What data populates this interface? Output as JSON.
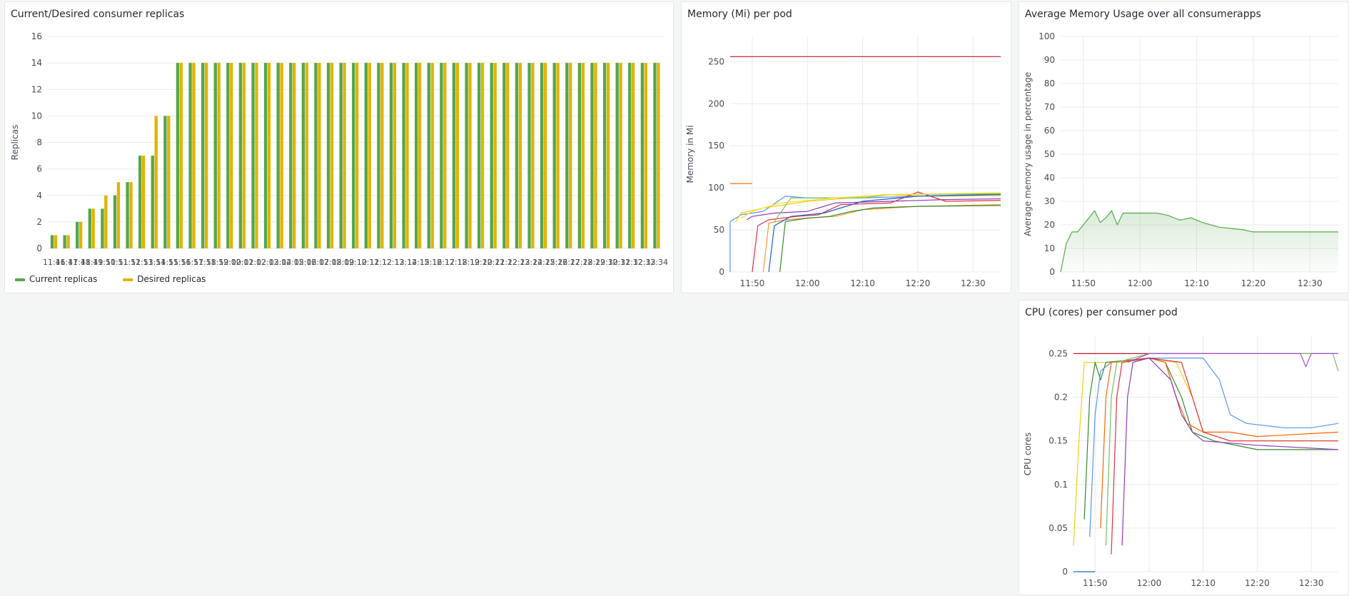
{
  "panels": {
    "replicas": {
      "title": "Current/Desired consumer replicas"
    },
    "memory": {
      "title": "Memory (Mi) per pod"
    },
    "avgmem": {
      "title": "Average Memory Usage over all consumerapps"
    },
    "cpu": {
      "title": "CPU (cores) per consumer pod"
    }
  },
  "colors": {
    "current": "#56a64b",
    "desired": "#e0b400",
    "limit": "#c4162a",
    "grid": "#e9ebec",
    "text": "#464c54"
  },
  "chart_data": [
    {
      "type": "bar",
      "title": "Current/Desired consumer replicas",
      "ylabel": "Replicas",
      "ylim": [
        0,
        16
      ],
      "yticks": [
        0,
        2,
        4,
        6,
        8,
        10,
        12,
        14,
        16
      ],
      "categories": [
        "11:46",
        "11:47",
        "11:48",
        "11:49",
        "11:50",
        "11:51",
        "11:52",
        "11:53",
        "11:54",
        "11:55",
        "11:56",
        "11:57",
        "11:58",
        "11:59",
        "12:00",
        "12:01",
        "12:02",
        "12:03",
        "12:04",
        "12:05",
        "12:06",
        "12:07",
        "12:08",
        "12:09",
        "12:10",
        "12:11",
        "12:12",
        "12:13",
        "12:14",
        "12:15",
        "12:16",
        "12:17",
        "12:18",
        "12:19",
        "12:20",
        "12:21",
        "12:22",
        "12:23",
        "12:24",
        "12:25",
        "12:26",
        "12:27",
        "12:28",
        "12:29",
        "12:30",
        "12:31",
        "12:32",
        "12:33",
        "12:34"
      ],
      "series": [
        {
          "name": "Current replicas",
          "color": "#56a64b",
          "values": [
            1,
            1,
            2,
            3,
            3,
            4,
            5,
            7,
            7,
            10,
            14,
            14,
            14,
            14,
            14,
            14,
            14,
            14,
            14,
            14,
            14,
            14,
            14,
            14,
            14,
            14,
            14,
            14,
            14,
            14,
            14,
            14,
            14,
            14,
            14,
            14,
            14,
            14,
            14,
            14,
            14,
            14,
            14,
            14,
            14,
            14,
            14,
            14,
            14
          ]
        },
        {
          "name": "Desired replicas",
          "color": "#e0b400",
          "values": [
            1,
            1,
            2,
            3,
            4,
            5,
            5,
            7,
            10,
            10,
            14,
            14,
            14,
            14,
            14,
            14,
            14,
            14,
            14,
            14,
            14,
            14,
            14,
            14,
            14,
            14,
            14,
            14,
            14,
            14,
            14,
            14,
            14,
            14,
            14,
            14,
            14,
            14,
            14,
            14,
            14,
            14,
            14,
            14,
            14,
            14,
            14,
            14,
            14
          ]
        }
      ],
      "legend": "bottom-left"
    },
    {
      "type": "line",
      "title": "Memory (Mi) per pod",
      "ylabel": "Memory in Mi",
      "ylim": [
        0,
        280
      ],
      "yticks": [
        0,
        50,
        100,
        150,
        200,
        250
      ],
      "xlim": [
        "11:46",
        "12:35"
      ],
      "xticks": [
        "11:50",
        "12:00",
        "12:10",
        "12:20",
        "12:30"
      ],
      "series": [
        {
          "color": "#c4162a",
          "points": [
            [
              "11:46",
              256
            ],
            [
              "12:35",
              256
            ]
          ]
        },
        {
          "color": "#fa6400",
          "points": [
            [
              "11:46",
              105
            ],
            [
              "11:50",
              105
            ]
          ]
        },
        {
          "color": "#5794f2",
          "points": [
            [
              "11:46",
              0
            ],
            [
              "11:46",
              60
            ],
            [
              "11:48",
              68
            ],
            [
              "11:52",
              72
            ],
            [
              "11:56",
              90
            ],
            [
              "12:00",
              88
            ],
            [
              "12:10",
              88
            ],
            [
              "12:20",
              90
            ],
            [
              "12:30",
              92
            ],
            [
              "12:35",
              93
            ]
          ]
        },
        {
          "color": "#f2cc0c",
          "points": [
            [
              "11:47",
              60
            ],
            [
              "11:48",
              70
            ],
            [
              "11:52",
              76
            ],
            [
              "12:00",
              84
            ],
            [
              "12:08",
              88
            ],
            [
              "12:14",
              92
            ],
            [
              "12:22",
              90
            ],
            [
              "12:35",
              91
            ]
          ]
        },
        {
          "color": "#8f3bb8",
          "points": [
            [
              "11:49",
              62
            ],
            [
              "11:50",
              66
            ],
            [
              "11:54",
              70
            ],
            [
              "12:00",
              72
            ],
            [
              "12:05",
              82
            ],
            [
              "12:15",
              84
            ],
            [
              "12:25",
              86
            ],
            [
              "12:35",
              87
            ]
          ]
        },
        {
          "color": "#e02f44",
          "points": [
            [
              "11:50",
              0
            ],
            [
              "11:51",
              55
            ],
            [
              "11:53",
              62
            ],
            [
              "11:58",
              66
            ],
            [
              "12:02",
              68
            ],
            [
              "12:06",
              80
            ],
            [
              "12:15",
              82
            ],
            [
              "12:20",
              95
            ],
            [
              "12:25",
              84
            ],
            [
              "12:35",
              85
            ]
          ]
        },
        {
          "color": "#ff9830",
          "points": [
            [
              "11:52",
              0
            ],
            [
              "11:53",
              58
            ],
            [
              "11:56",
              62
            ],
            [
              "12:00",
              64
            ],
            [
              "12:05",
              66
            ],
            [
              "12:10",
              74
            ],
            [
              "12:20",
              78
            ],
            [
              "12:35",
              80
            ]
          ]
        },
        {
          "color": "#37872d",
          "points": [
            [
              "11:55",
              0
            ],
            [
              "11:56",
              60
            ],
            [
              "12:00",
              64
            ],
            [
              "12:04",
              66
            ],
            [
              "12:08",
              72
            ],
            [
              "12:12",
              76
            ],
            [
              "12:20",
              78
            ],
            [
              "12:35",
              79
            ]
          ]
        },
        {
          "color": "#73bf69",
          "points": [
            [
              "11:54",
              60
            ],
            [
              "11:57",
              88
            ],
            [
              "12:10",
              88
            ],
            [
              "12:15",
              92
            ],
            [
              "12:35",
              93
            ]
          ]
        },
        {
          "color": "#1f60c4",
          "points": [
            [
              "11:53",
              0
            ],
            [
              "11:54",
              55
            ],
            [
              "11:57",
              66
            ],
            [
              "12:03",
              70
            ],
            [
              "12:10",
              84
            ],
            [
              "12:20",
              90
            ],
            [
              "12:35",
              92
            ]
          ]
        },
        {
          "color": "#fade2a",
          "points": [
            [
              "11:48",
              64
            ],
            [
              "11:50",
              72
            ],
            [
              "11:55",
              82
            ],
            [
              "12:05",
              88
            ],
            [
              "12:15",
              92
            ],
            [
              "12:35",
              94
            ]
          ]
        }
      ]
    },
    {
      "type": "area",
      "title": "Average Memory Usage over all consumerapps",
      "ylabel": "Average memory usage in percentage",
      "ylim": [
        0,
        100
      ],
      "yticks": [
        0,
        10,
        20,
        30,
        40,
        50,
        60,
        70,
        80,
        90,
        100
      ],
      "xlim": [
        "11:46",
        "12:35"
      ],
      "xticks": [
        "11:50",
        "12:00",
        "12:10",
        "12:20",
        "12:30"
      ],
      "series": [
        {
          "color": "#56a64b",
          "points": [
            [
              "11:46",
              0
            ],
            [
              "11:47",
              12
            ],
            [
              "11:48",
              17
            ],
            [
              "11:49",
              17
            ],
            [
              "11:50",
              20
            ],
            [
              "11:51",
              23
            ],
            [
              "11:52",
              26
            ],
            [
              "11:53",
              21
            ],
            [
              "11:54",
              23
            ],
            [
              "11:55",
              26
            ],
            [
              "11:56",
              20
            ],
            [
              "11:57",
              25
            ],
            [
              "12:03",
              25
            ],
            [
              "12:05",
              24
            ],
            [
              "12:07",
              22
            ],
            [
              "12:09",
              23
            ],
            [
              "12:11",
              21
            ],
            [
              "12:14",
              19
            ],
            [
              "12:18",
              18
            ],
            [
              "12:20",
              17
            ],
            [
              "12:25",
              17
            ],
            [
              "12:30",
              17
            ],
            [
              "12:35",
              17
            ]
          ]
        }
      ]
    },
    {
      "type": "line",
      "title": "CPU (cores) per consumer pod",
      "ylabel": "CPU cores",
      "ylim": [
        0,
        0.27
      ],
      "yticks": [
        0,
        0.05,
        0.1,
        0.15,
        0.2,
        0.25
      ],
      "xlim": [
        "11:46",
        "12:35"
      ],
      "xticks": [
        "11:50",
        "12:00",
        "12:10",
        "12:20",
        "12:30"
      ],
      "series": [
        {
          "color": "#c4162a",
          "points": [
            [
              "11:46",
              0.25
            ],
            [
              "12:35",
              0.25
            ]
          ]
        },
        {
          "color": "#1f60c4",
          "points": [
            [
              "11:46",
              0
            ],
            [
              "11:48",
              0
            ],
            [
              "11:50",
              0
            ]
          ]
        },
        {
          "color": "#f2cc0c",
          "points": [
            [
              "11:46",
              0.03
            ],
            [
              "11:47",
              0.15
            ],
            [
              "11:48",
              0.24
            ],
            [
              "11:50",
              0.24
            ],
            [
              "11:55",
              0.24
            ],
            [
              "12:00",
              0.245
            ],
            [
              "12:05",
              0.24
            ],
            [
              "12:08",
              0.2
            ],
            [
              "12:10",
              0.16
            ],
            [
              "12:15",
              0.15
            ],
            [
              "12:20",
              0.15
            ],
            [
              "12:35",
              0.15
            ]
          ]
        },
        {
          "color": "#37872d",
          "points": [
            [
              "11:48",
              0.06
            ],
            [
              "11:49",
              0.2
            ],
            [
              "11:50",
              0.24
            ],
            [
              "11:51",
              0.22
            ],
            [
              "11:52",
              0.24
            ],
            [
              "12:00",
              0.245
            ],
            [
              "12:03",
              0.24
            ],
            [
              "12:06",
              0.2
            ],
            [
              "12:08",
              0.16
            ],
            [
              "12:12",
              0.15
            ],
            [
              "12:20",
              0.14
            ],
            [
              "12:35",
              0.14
            ]
          ]
        },
        {
          "color": "#5794f2",
          "points": [
            [
              "11:49",
              0.04
            ],
            [
              "11:50",
              0.18
            ],
            [
              "11:51",
              0.23
            ],
            [
              "11:53",
              0.24
            ],
            [
              "12:00",
              0.245
            ],
            [
              "12:10",
              0.245
            ],
            [
              "12:13",
              0.22
            ],
            [
              "12:15",
              0.18
            ],
            [
              "12:18",
              0.17
            ],
            [
              "12:25",
              0.165
            ],
            [
              "12:30",
              0.165
            ],
            [
              "12:35",
              0.17
            ]
          ]
        },
        {
          "color": "#fa6400",
          "points": [
            [
              "11:51",
              0.05
            ],
            [
              "11:52",
              0.2
            ],
            [
              "11:53",
              0.24
            ],
            [
              "12:00",
              0.245
            ],
            [
              "12:03",
              0.24
            ],
            [
              "12:05",
              0.2
            ],
            [
              "12:07",
              0.17
            ],
            [
              "12:10",
              0.16
            ],
            [
              "12:15",
              0.16
            ],
            [
              "12:20",
              0.155
            ],
            [
              "12:35",
              0.16
            ]
          ]
        },
        {
          "color": "#e02f44",
          "points": [
            [
              "11:53",
              0.02
            ],
            [
              "11:54",
              0.2
            ],
            [
              "11:55",
              0.24
            ],
            [
              "12:00",
              0.245
            ],
            [
              "12:06",
              0.24
            ],
            [
              "12:08",
              0.2
            ],
            [
              "12:10",
              0.16
            ],
            [
              "12:15",
              0.15
            ],
            [
              "12:25",
              0.15
            ],
            [
              "12:35",
              0.15
            ]
          ]
        },
        {
          "color": "#8f3bb8",
          "points": [
            [
              "11:55",
              0.03
            ],
            [
              "11:56",
              0.2
            ],
            [
              "11:57",
              0.24
            ],
            [
              "12:00",
              0.245
            ],
            [
              "12:04",
              0.22
            ],
            [
              "12:06",
              0.18
            ],
            [
              "12:08",
              0.16
            ],
            [
              "12:10",
              0.15
            ],
            [
              "12:20",
              0.145
            ],
            [
              "12:35",
              0.14
            ]
          ]
        },
        {
          "color": "#73bf69",
          "points": [
            [
              "11:52",
              0.03
            ],
            [
              "11:53",
              0.2
            ],
            [
              "11:54",
              0.24
            ],
            [
              "12:00",
              0.25
            ],
            [
              "12:10",
              0.25
            ],
            [
              "12:20",
              0.25
            ],
            [
              "12:30",
              0.25
            ],
            [
              "12:34",
              0.25
            ],
            [
              "12:35",
              0.23
            ]
          ]
        },
        {
          "color": "#a352cc",
          "points": [
            [
              "11:56",
              0.24
            ],
            [
              "12:00",
              0.25
            ],
            [
              "12:10",
              0.25
            ],
            [
              "12:20",
              0.25
            ],
            [
              "12:28",
              0.25
            ],
            [
              "12:29",
              0.235
            ],
            [
              "12:30",
              0.25
            ],
            [
              "12:35",
              0.25
            ]
          ]
        }
      ]
    }
  ]
}
